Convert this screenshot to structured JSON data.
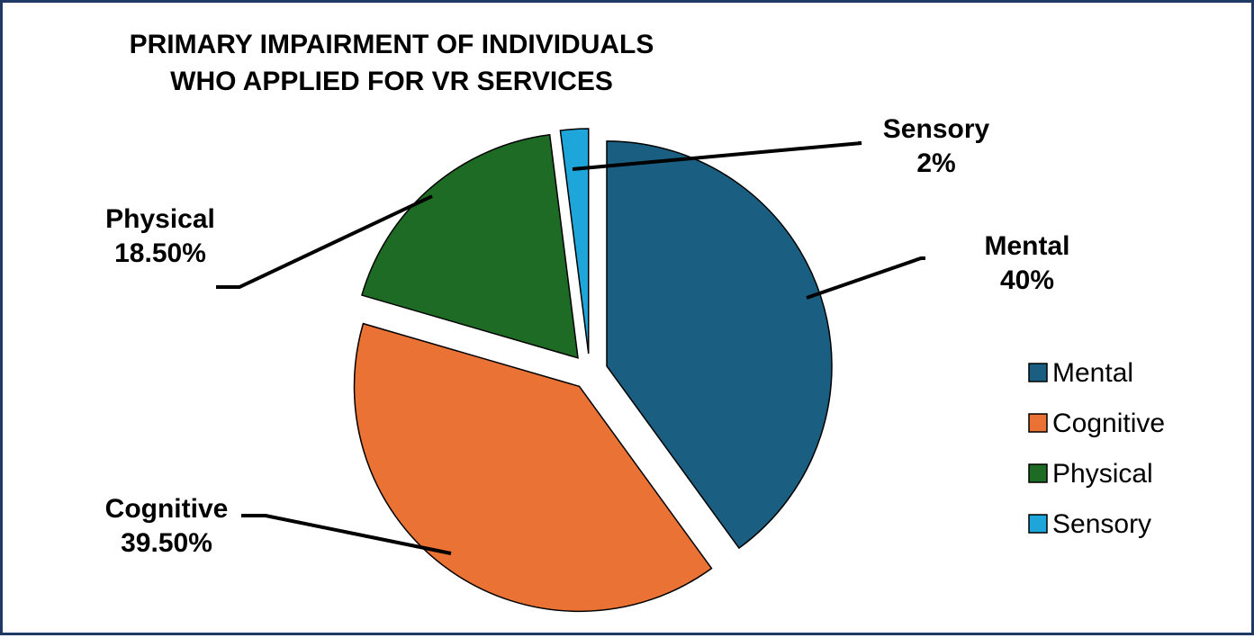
{
  "chart_data": {
    "type": "pie",
    "title_lines": [
      "PRIMARY IMPAIRMENT OF INDIVIDUALS",
      "WHO APPLIED FOR VR SERVICES"
    ],
    "categories": [
      "Mental",
      "Cognitive",
      "Physical",
      "Sensory"
    ],
    "values": [
      40,
      39.5,
      18.5,
      2
    ],
    "data_labels": [
      "40%",
      "39.50%",
      "18.50%",
      "2%"
    ],
    "colors": [
      "#1a5f82",
      "#e97234",
      "#1d6b25",
      "#1ea5d9"
    ],
    "exploded": true,
    "legend_position": "right",
    "legend": [
      "Mental",
      "Cognitive",
      "Physical",
      "Sensory"
    ]
  }
}
